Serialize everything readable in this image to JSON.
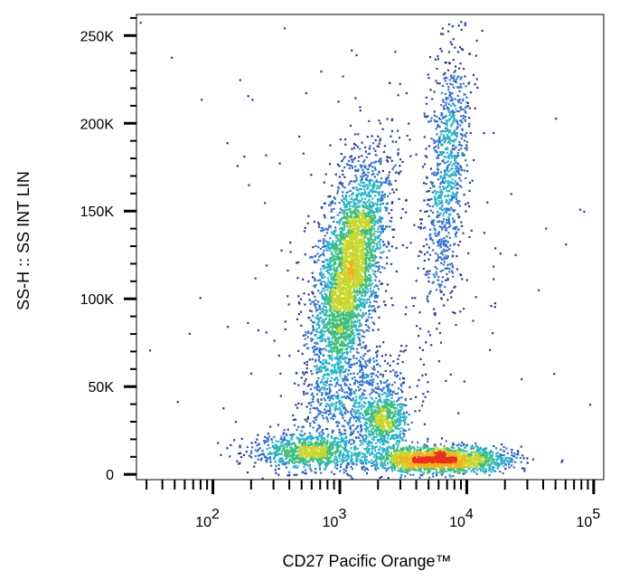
{
  "chart_data": {
    "type": "scatter",
    "subtype": "flow-cytometry density dot plot",
    "xlabel": "CD27 Pacific Orange™",
    "ylabel": "SS-H :: SS INT LIN",
    "xscale": "log",
    "xlim": [
      25,
      120000
    ],
    "ylim": [
      -3000,
      262000
    ],
    "x_tick_labels": [
      {
        "value": 100,
        "base": "10",
        "exp": "2"
      },
      {
        "value": 1000,
        "base": "10",
        "exp": "3"
      },
      {
        "value": 10000,
        "base": "10",
        "exp": "4"
      },
      {
        "value": 100000,
        "base": "10",
        "exp": "5"
      }
    ],
    "y_ticks": [
      0,
      50000,
      100000,
      150000,
      200000,
      250000
    ],
    "y_tick_labels": [
      "0",
      "50K",
      "100K",
      "150K",
      "200K",
      "250K"
    ],
    "density_colormap": [
      "#2b3a9c",
      "#2f6fd0",
      "#27b3c9",
      "#3fbf7a",
      "#c8d62c",
      "#f3b21c",
      "#e8301e"
    ],
    "populations": [
      {
        "x": 1100,
        "y": 120000,
        "count": 3400,
        "density": "high"
      },
      {
        "x": 5000,
        "y": 9000,
        "count": 1800,
        "density": "high"
      },
      {
        "x": 550,
        "y": 14000,
        "count": 900,
        "density": "medium"
      },
      {
        "x": 2100,
        "y": 30000,
        "count": 500,
        "density": "medium"
      },
      {
        "x": 6000,
        "y": 165000,
        "count": 900,
        "density": "low"
      },
      {
        "x": 1400,
        "y": 45000,
        "count": 700,
        "density": "low"
      }
    ],
    "grid": false,
    "legend": "none"
  }
}
